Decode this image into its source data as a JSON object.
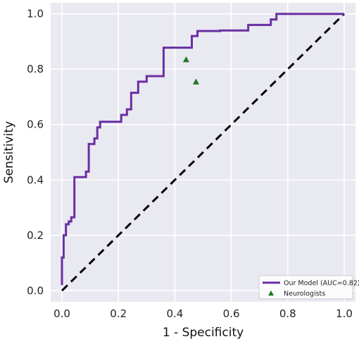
{
  "chart_data": {
    "type": "line",
    "xlabel": "1 - Specificity",
    "ylabel": "Sensitivity",
    "xlim": [
      -0.04,
      1.04
    ],
    "ylim": [
      -0.04,
      1.04
    ],
    "xticks": [
      0.0,
      0.2,
      0.4,
      0.6,
      0.8,
      1.0
    ],
    "yticks": [
      0.0,
      0.2,
      0.4,
      0.6,
      0.8,
      1.0
    ],
    "xtick_labels": [
      "0.0",
      "0.2",
      "0.4",
      "0.6",
      "0.8",
      "1.0"
    ],
    "ytick_labels": [
      "0.0",
      "0.2",
      "0.4",
      "0.6",
      "0.8",
      "1.0"
    ],
    "grid": true,
    "legend_position": "bottom-right",
    "colors": {
      "background": "#e9e9f1",
      "grid": "#ffffff",
      "roc": "#6a2fa3",
      "chance": "#000000",
      "marker": "#1f7a1f"
    },
    "series": [
      {
        "name": "Our Model (AUC=0.82)",
        "kind": "line",
        "x": [
          0.0,
          0.0,
          0.006,
          0.006,
          0.014,
          0.014,
          0.024,
          0.024,
          0.033,
          0.033,
          0.044,
          0.044,
          0.052,
          0.052,
          0.066,
          0.066,
          0.085,
          0.085,
          0.095,
          0.095,
          0.115,
          0.115,
          0.125,
          0.125,
          0.135,
          0.135,
          0.21,
          0.21,
          0.23,
          0.23,
          0.245,
          0.245,
          0.27,
          0.27,
          0.3,
          0.3,
          0.36,
          0.36,
          0.46,
          0.46,
          0.48,
          0.48,
          0.56,
          0.56,
          0.66,
          0.66,
          0.74,
          0.74,
          0.76,
          0.76,
          1.0
        ],
        "y": [
          0.02,
          0.12,
          0.12,
          0.2,
          0.2,
          0.24,
          0.24,
          0.25,
          0.25,
          0.265,
          0.265,
          0.41,
          0.41,
          0.41,
          0.41,
          0.41,
          0.41,
          0.43,
          0.43,
          0.53,
          0.53,
          0.55,
          0.55,
          0.59,
          0.59,
          0.61,
          0.61,
          0.635,
          0.635,
          0.655,
          0.655,
          0.715,
          0.715,
          0.755,
          0.755,
          0.775,
          0.775,
          0.878,
          0.878,
          0.92,
          0.92,
          0.938,
          0.938,
          0.94,
          0.94,
          0.96,
          0.96,
          0.98,
          0.98,
          1.0,
          1.0
        ]
      },
      {
        "name": "Neurologists",
        "kind": "scatter",
        "x": [
          0.44,
          0.475
        ],
        "y": [
          0.835,
          0.755
        ]
      }
    ],
    "reference_line": {
      "x": [
        0.0,
        1.0
      ],
      "y": [
        0.0,
        1.0
      ]
    }
  }
}
